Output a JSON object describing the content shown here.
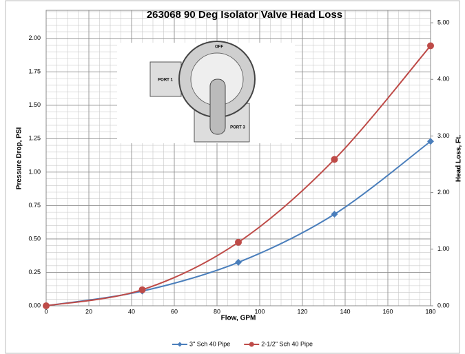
{
  "chart_data": {
    "type": "line",
    "title": "263068 90 Deg Isolator Valve Head Loss",
    "xlabel": "Flow, GPM",
    "ylabel": "Pressure Drop, PSI",
    "y2label": "Head Loss, Ft.",
    "x": [
      0,
      45,
      90,
      135,
      180
    ],
    "series": [
      {
        "name": "3\" Sch 40 Pipe",
        "color": "#4a7ebb",
        "marker": "diamond",
        "values": [
          0,
          0.11,
          0.325,
          0.685,
          1.23
        ]
      },
      {
        "name": "2-1/2\" Sch 40 Pipe",
        "color": "#be4b48",
        "marker": "circle",
        "values": [
          0,
          0.12,
          0.475,
          1.095,
          1.945
        ]
      }
    ],
    "xlim": [
      0,
      180
    ],
    "xticks": [
      0,
      20,
      40,
      60,
      80,
      100,
      120,
      140,
      160,
      180
    ],
    "ylim": [
      0,
      2.21
    ],
    "yticks": [
      {
        "value": 0,
        "label": "0.00"
      },
      {
        "value": 0.25,
        "label": "0.25"
      },
      {
        "value": 0.5,
        "label": "0.50"
      },
      {
        "value": 0.75,
        "label": "0.75"
      },
      {
        "value": 1,
        "label": "1.00"
      },
      {
        "value": 1.25,
        "label": "1.25"
      },
      {
        "value": 1.5,
        "label": "1.50"
      },
      {
        "value": 1.75,
        "label": "1.75"
      },
      {
        "value": 2,
        "label": "2.00"
      }
    ],
    "y2lim": [
      0,
      5.22
    ],
    "y2ticks": [
      {
        "value": 0,
        "label": "0.00"
      },
      {
        "value": 1,
        "label": "1.00"
      },
      {
        "value": 2,
        "label": "2.00"
      },
      {
        "value": 3,
        "label": "3.00"
      },
      {
        "value": 4,
        "label": "4.00"
      },
      {
        "value": 5,
        "label": "5.00"
      }
    ],
    "grid": true,
    "xminor": 5,
    "yminor": 0.05,
    "legend": "bottom",
    "annotations": [
      "PORT 1",
      "PORT 3",
      "OFF"
    ]
  }
}
